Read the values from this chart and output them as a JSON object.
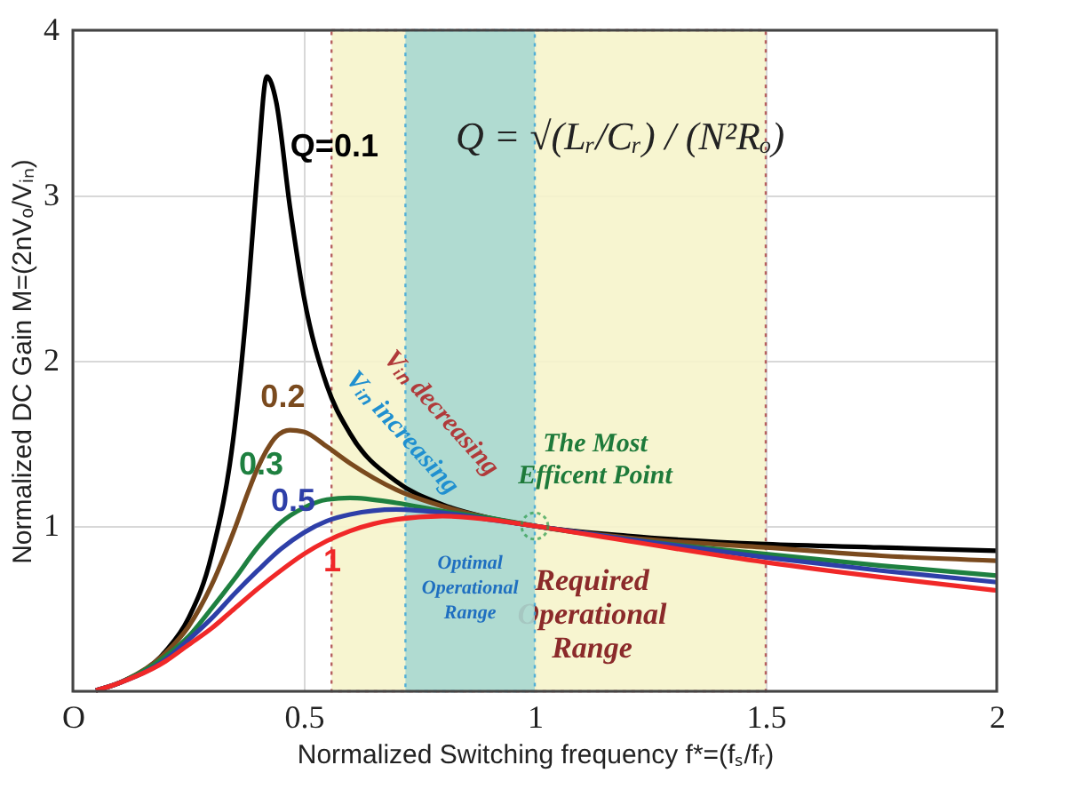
{
  "chart_data": {
    "type": "line",
    "xlabel": "Normalized Switching frequency f*=(fₛ/fᵣ)",
    "ylabel": "Normalized DC Gain M=(2nVₒ/Vᵢₙ)",
    "xlim": [
      0,
      2
    ],
    "ylim": [
      0,
      4
    ],
    "xticks": [
      {
        "value": 0,
        "label": "O"
      },
      0.5,
      1,
      1.5,
      2
    ],
    "yticks": [
      {
        "value": 0,
        "label": null
      },
      1,
      2,
      3,
      4
    ],
    "grid": true,
    "legend": false,
    "marker": "none",
    "line_style": "solid",
    "series": [
      {
        "name": "Q=0.1",
        "color": "#000000",
        "x": [
          0.05,
          0.1,
          0.2,
          0.25,
          0.3,
          0.35,
          0.38,
          0.4,
          0.42,
          0.44,
          0.47,
          0.5,
          0.55,
          0.6,
          0.7,
          0.8,
          0.9,
          1.0,
          1.2,
          1.5,
          1.75,
          2.0
        ],
        "values": [
          0.005,
          0.05,
          0.24,
          0.44,
          0.82,
          1.59,
          2.44,
          3.16,
          3.72,
          3.57,
          2.93,
          2.39,
          1.85,
          1.56,
          1.27,
          1.13,
          1.05,
          1.0,
          0.94,
          0.89,
          0.87,
          0.85
        ]
      },
      {
        "name": "0.2",
        "color": "#7a4a1e",
        "x": [
          0.05,
          0.1,
          0.2,
          0.25,
          0.3,
          0.35,
          0.38,
          0.4,
          0.42,
          0.44,
          0.47,
          0.5,
          0.55,
          0.6,
          0.7,
          0.8,
          0.9,
          1.0,
          1.2,
          1.5,
          1.75,
          2.0
        ],
        "values": [
          0.005,
          0.05,
          0.23,
          0.39,
          0.64,
          0.98,
          1.21,
          1.35,
          1.46,
          1.54,
          1.58,
          1.57,
          1.48,
          1.38,
          1.22,
          1.12,
          1.05,
          1.0,
          0.93,
          0.87,
          0.82,
          0.79
        ]
      },
      {
        "name": "0.3",
        "color": "#1e8040",
        "x": [
          0.05,
          0.1,
          0.2,
          0.25,
          0.3,
          0.35,
          0.4,
          0.45,
          0.5,
          0.55,
          0.6,
          0.7,
          0.8,
          0.9,
          1.0,
          1.2,
          1.5,
          1.75,
          2.0
        ],
        "values": [
          0.005,
          0.05,
          0.21,
          0.33,
          0.5,
          0.68,
          0.87,
          1.02,
          1.11,
          1.16,
          1.17,
          1.14,
          1.09,
          1.05,
          1.0,
          0.92,
          0.83,
          0.76,
          0.7
        ]
      },
      {
        "name": "0.5",
        "color": "#2e3fa8",
        "x": [
          0.05,
          0.1,
          0.2,
          0.25,
          0.3,
          0.35,
          0.4,
          0.45,
          0.5,
          0.55,
          0.6,
          0.7,
          0.8,
          0.9,
          1.0,
          1.2,
          1.5,
          1.75,
          2.0
        ],
        "values": [
          0.005,
          0.05,
          0.19,
          0.31,
          0.44,
          0.59,
          0.73,
          0.86,
          0.96,
          1.03,
          1.07,
          1.1,
          1.08,
          1.04,
          1.0,
          0.92,
          0.81,
          0.73,
          0.66
        ]
      },
      {
        "name": "1",
        "color": "#f02828",
        "x": [
          0.05,
          0.1,
          0.2,
          0.25,
          0.3,
          0.35,
          0.4,
          0.45,
          0.5,
          0.55,
          0.6,
          0.7,
          0.8,
          0.9,
          1.0,
          1.2,
          1.5,
          1.75,
          2.0
        ],
        "values": [
          0.005,
          0.05,
          0.18,
          0.28,
          0.38,
          0.5,
          0.62,
          0.73,
          0.83,
          0.91,
          0.97,
          1.04,
          1.06,
          1.04,
          1.0,
          0.91,
          0.78,
          0.69,
          0.61
        ]
      }
    ],
    "bands": [
      {
        "axis": "x",
        "from": 0.56,
        "to": 1.5,
        "label": "Required Operational Range",
        "color": "#f7f4cc"
      },
      {
        "axis": "x",
        "from": 0.72,
        "to": 1.0,
        "label": "Optimal Operational Range",
        "color": "#a9d9d2"
      }
    ],
    "annotations": [
      "Q = √(Lᵣ/Cᵣ) / (N²Rₒ)",
      "Vᵢₙ decreasing",
      "Vᵢₙ increasing",
      {
        "text": "The Most Efficent Point",
        "x": 1,
        "y": 1
      }
    ]
  }
}
